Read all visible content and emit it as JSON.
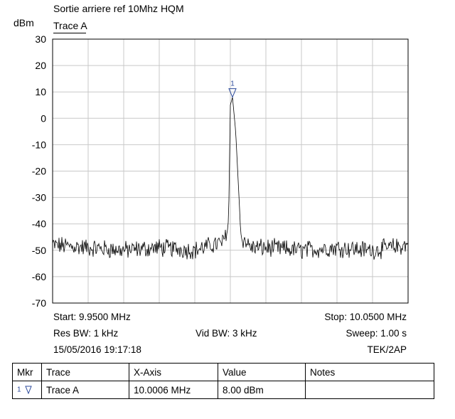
{
  "header": {
    "title": "Sortie arriere ref 10Mhz HQM",
    "unit": "dBm",
    "trace_name": "Trace A"
  },
  "chart_data": {
    "type": "line",
    "title": "Sortie arriere ref 10Mhz HQM",
    "ylabel": "dBm",
    "ylim": [
      -70,
      30
    ],
    "yticks": [
      30,
      20,
      10,
      0,
      -10,
      -20,
      -30,
      -40,
      -50,
      -60,
      -70
    ],
    "xlim_mhz": [
      9.95,
      10.05
    ],
    "grid": true,
    "series": [
      {
        "name": "Trace A",
        "noise_floor_dbm": -49,
        "x_mhz": [
          9.95,
          9.96,
          9.97,
          9.98,
          9.99,
          9.995,
          9.998,
          9.9995,
          10.0,
          10.0006,
          10.0015,
          10.003,
          10.006,
          10.01,
          10.02,
          10.03,
          10.04,
          10.05
        ],
        "y_dbm": [
          -48,
          -49,
          -50,
          -49,
          -50,
          -48,
          -47,
          -40,
          5,
          8,
          -5,
          -45,
          -49,
          -49,
          -50,
          -49,
          -50,
          -48
        ]
      }
    ],
    "marker": {
      "label": "1",
      "x_mhz": 10.0006,
      "y_dbm": 8.0
    }
  },
  "info": {
    "start": "Start: 9.9500 MHz",
    "stop": "Stop: 10.0500 MHz",
    "res_bw": "Res BW: 1 kHz",
    "vid_bw": "Vid BW: 3 kHz",
    "sweep": "Sweep: 1.00 s",
    "datetime": "15/05/2016 19:17:18",
    "instrument": "TEK/2AP"
  },
  "marker_table": {
    "headers": [
      "Mkr",
      "Trace",
      "X-Axis",
      "Value",
      "Notes"
    ],
    "rows": [
      {
        "mkr": "1",
        "trace": "Trace A",
        "x_axis": "10.0006 MHz",
        "value": "8.00 dBm",
        "notes": ""
      }
    ]
  },
  "colors": {
    "trace": "#000000",
    "grid": "#c8c8c8",
    "marker": "#2c4a9b"
  }
}
